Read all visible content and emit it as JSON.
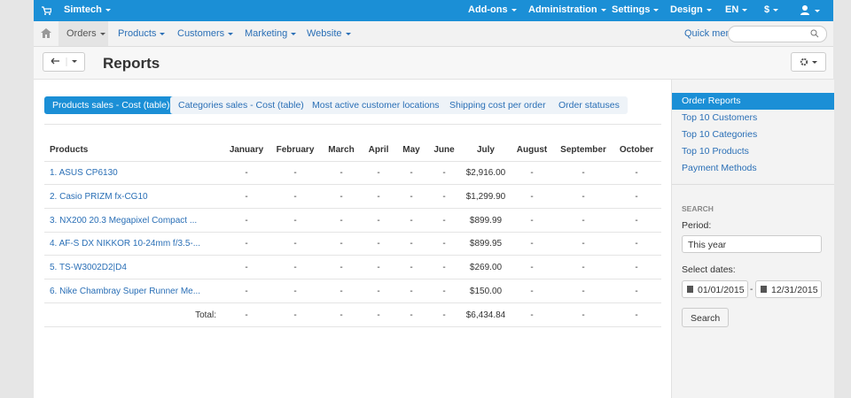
{
  "topbar": {
    "store": "Simtech",
    "menu": [
      "Add-ons",
      "Administration",
      "Settings",
      "Design",
      "EN",
      "$"
    ]
  },
  "navbar": {
    "items": [
      "Orders",
      "Products",
      "Customers",
      "Marketing",
      "Website"
    ],
    "quick_menu": "Quick menu"
  },
  "page": {
    "title": "Reports"
  },
  "tabs": [
    "Products sales - Cost (table)",
    "Categories sales - Cost (table)",
    "Most active customer locations",
    "Shipping cost per order",
    "Order statuses"
  ],
  "table": {
    "header": [
      "Products",
      "January",
      "February",
      "March",
      "April",
      "May",
      "June",
      "July",
      "August",
      "September",
      "October"
    ],
    "rows": [
      [
        "1. ASUS CP6130",
        "-",
        "-",
        "-",
        "-",
        "-",
        "-",
        "$2,916.00",
        "-",
        "-",
        "-"
      ],
      [
        "2. Casio PRIZM fx-CG10",
        "-",
        "-",
        "-",
        "-",
        "-",
        "-",
        "$1,299.90",
        "-",
        "-",
        "-"
      ],
      [
        "3. NX200 20.3 Megapixel Compact ...",
        "-",
        "-",
        "-",
        "-",
        "-",
        "-",
        "$899.99",
        "-",
        "-",
        "-"
      ],
      [
        "4. AF-S DX NIKKOR 10-24mm f/3.5-...",
        "-",
        "-",
        "-",
        "-",
        "-",
        "-",
        "$899.95",
        "-",
        "-",
        "-"
      ],
      [
        "5. TS-W3002D2|D4",
        "-",
        "-",
        "-",
        "-",
        "-",
        "-",
        "$269.00",
        "-",
        "-",
        "-"
      ],
      [
        "6. Nike Chambray Super Runner Me...",
        "-",
        "-",
        "-",
        "-",
        "-",
        "-",
        "$150.00",
        "-",
        "-",
        "-"
      ]
    ],
    "total": [
      "Total:",
      "-",
      "-",
      "-",
      "-",
      "-",
      "-",
      "$6,434.84",
      "-",
      "-",
      "-"
    ]
  },
  "sidebar": {
    "links": [
      "Order Reports",
      "Top 10 Customers",
      "Top 10 Categories",
      "Top 10 Products",
      "Payment Methods"
    ],
    "search": {
      "heading": "SEARCH",
      "period_label": "Period:",
      "period": "This year",
      "dates_label": "Select dates:",
      "from": "01/01/2015",
      "date_separator": "-",
      "to": "12/31/2015",
      "button": "Search"
    }
  }
}
